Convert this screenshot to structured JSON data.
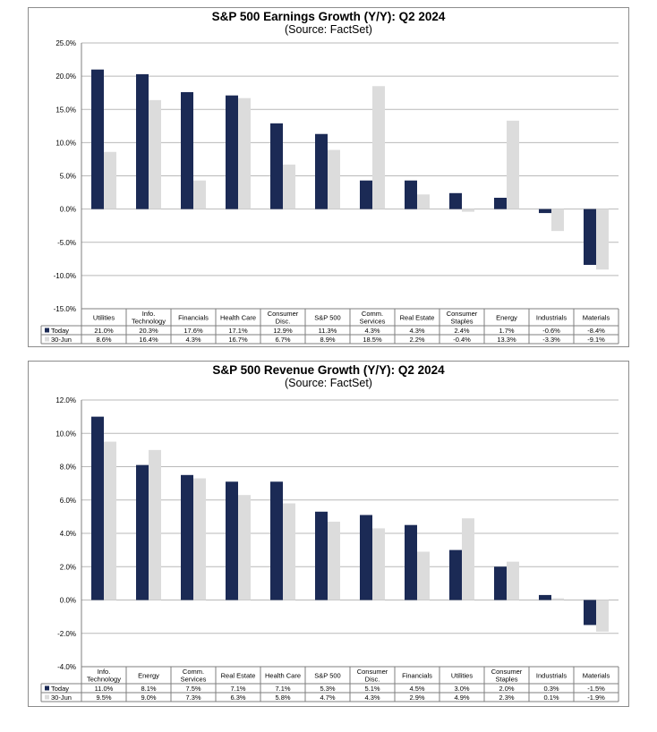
{
  "colors": {
    "today": "#1b2a55",
    "june": "#dcdcdc",
    "grid": "#b9b9b9",
    "axis": "#7f7f7f"
  },
  "chart_data": [
    {
      "type": "bar",
      "title": "S&P 500 Earnings Growth (Y/Y): Q2 2024",
      "subtitle": "(Source: FactSet)",
      "categories": [
        [
          "Utilities"
        ],
        [
          "Info.",
          "Technology"
        ],
        [
          "Financials"
        ],
        [
          "Health Care"
        ],
        [
          "Consumer",
          "Disc."
        ],
        [
          "S&P 500"
        ],
        [
          "Comm.",
          "Services"
        ],
        [
          "Real Estate"
        ],
        [
          "Consumer",
          "Staples"
        ],
        [
          "Energy"
        ],
        [
          "Industrials"
        ],
        [
          "Materials"
        ]
      ],
      "series": [
        {
          "name": "Today",
          "values": [
            21.0,
            20.3,
            17.6,
            17.1,
            12.9,
            11.3,
            4.3,
            4.3,
            2.4,
            1.7,
            -0.6,
            -8.4
          ]
        },
        {
          "name": "30-Jun",
          "values": [
            8.6,
            16.4,
            4.3,
            16.7,
            6.7,
            8.9,
            18.5,
            2.2,
            -0.4,
            13.3,
            -3.3,
            -9.1
          ]
        }
      ],
      "ylim": [
        -15,
        25
      ],
      "yticks": [
        25,
        20,
        15,
        10,
        5,
        0,
        -5,
        -10,
        -15
      ],
      "tick_labels": [
        "25.0%",
        "20.0%",
        "15.0%",
        "10.0%",
        "5.0%",
        "0.0%",
        "-5.0%",
        "-10.0%",
        "-15.0%"
      ],
      "grid": true,
      "legend": "data-table"
    },
    {
      "type": "bar",
      "title": "S&P 500 Revenue Growth (Y/Y): Q2 2024",
      "subtitle": "(Source: FactSet)",
      "categories": [
        [
          "Info.",
          "Technology"
        ],
        [
          "Energy"
        ],
        [
          "Comm.",
          "Services"
        ],
        [
          "Real Estate"
        ],
        [
          "Health Care"
        ],
        [
          "S&P 500"
        ],
        [
          "Consumer",
          "Disc."
        ],
        [
          "Financials"
        ],
        [
          "Utilities"
        ],
        [
          "Consumer",
          "Staples"
        ],
        [
          "Industrials"
        ],
        [
          "Materials"
        ]
      ],
      "series": [
        {
          "name": "Today",
          "values": [
            11.0,
            8.1,
            7.5,
            7.1,
            7.1,
            5.3,
            5.1,
            4.5,
            3.0,
            2.0,
            0.3,
            -1.5
          ]
        },
        {
          "name": "30-Jun",
          "values": [
            9.5,
            9.0,
            7.3,
            6.3,
            5.8,
            4.7,
            4.3,
            2.9,
            4.9,
            2.3,
            0.1,
            -1.9
          ]
        }
      ],
      "ylim": [
        -4,
        12
      ],
      "yticks": [
        12,
        10,
        8,
        6,
        4,
        2,
        0,
        -2,
        -4
      ],
      "tick_labels": [
        "12.0%",
        "10.0%",
        "8.0%",
        "6.0%",
        "4.0%",
        "2.0%",
        "0.0%",
        "-2.0%",
        "-4.0%"
      ],
      "grid": true,
      "legend": "data-table"
    }
  ]
}
